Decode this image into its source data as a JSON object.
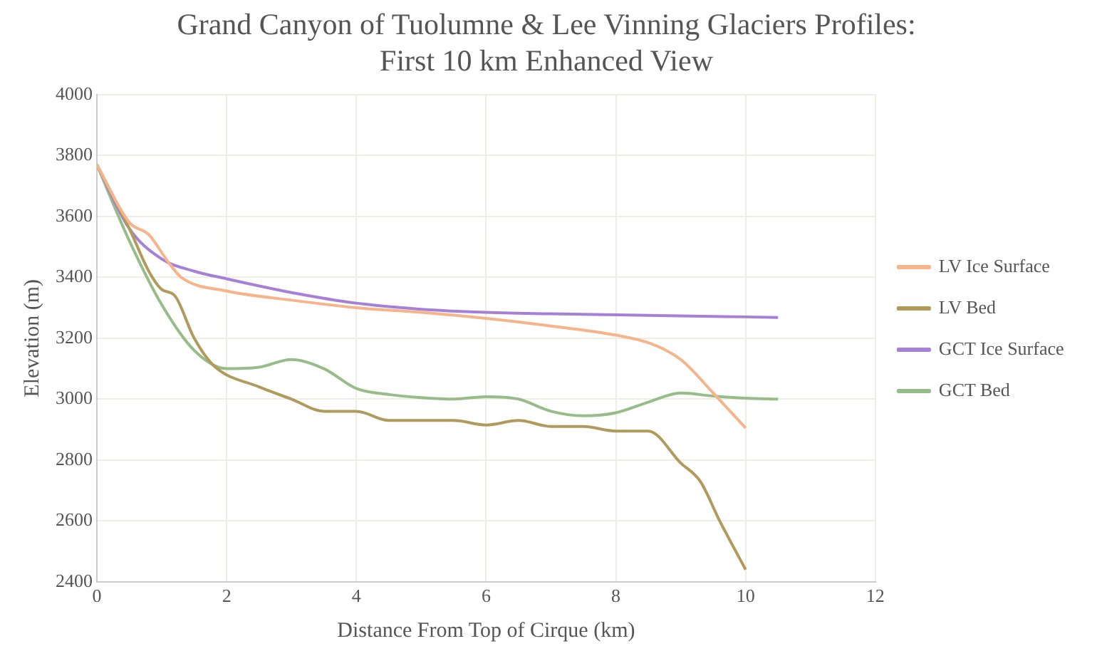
{
  "chart_data": {
    "type": "line",
    "title": "Grand Canyon of Tuolumne & Lee Vinning Glaciers Profiles:",
    "subtitle": "First 10 km Enhanced View",
    "xlabel": "Distance From Top of Cirque (km)",
    "ylabel": "Elevation (m)",
    "xlim": [
      0,
      12
    ],
    "xticks": [
      0,
      2,
      4,
      6,
      8,
      10,
      12
    ],
    "ylim": [
      2400,
      4000
    ],
    "yticks": [
      2400,
      2600,
      2800,
      3000,
      3200,
      3400,
      3600,
      3800,
      4000
    ],
    "grid": true,
    "legend": "right",
    "marker": "none",
    "line_style": "solid",
    "series": [
      {
        "name": "LV Ice Surface",
        "color": "#f6b48a",
        "x": [
          0,
          0.5,
          0.8,
          1.1,
          1.3,
          2,
          3,
          4,
          5,
          6,
          7,
          8,
          8.5,
          9,
          9.5,
          10
        ],
        "values": [
          3770,
          3580,
          3540,
          3450,
          3400,
          3355,
          3325,
          3300,
          3285,
          3265,
          3240,
          3210,
          3185,
          3130,
          3020,
          2905
        ]
      },
      {
        "name": "LV Bed",
        "color": "#b09a5c",
        "x": [
          0,
          0.5,
          0.8,
          1,
          1.2,
          1.5,
          1.8,
          2.5,
          3,
          3.5,
          4,
          4.5,
          5,
          5.5,
          6,
          6.5,
          7,
          7.5,
          8,
          8.5,
          9,
          9.3,
          9.6,
          10
        ],
        "values": [
          3770,
          3560,
          3420,
          3360,
          3340,
          3200,
          3110,
          3040,
          3000,
          2960,
          2960,
          2930,
          2930,
          2930,
          2915,
          2930,
          2910,
          2910,
          2895,
          2895,
          2790,
          2730,
          2600,
          2440
        ]
      },
      {
        "name": "GCT Ice Surface",
        "color": "#a680d6",
        "x": [
          0,
          0.5,
          1,
          1.5,
          2,
          3,
          4,
          5,
          6,
          7,
          8,
          9,
          10,
          10.5
        ],
        "values": [
          3770,
          3560,
          3460,
          3420,
          3395,
          3350,
          3315,
          3295,
          3285,
          3280,
          3277,
          3273,
          3270,
          3268
        ]
      },
      {
        "name": "GCT Bed",
        "color": "#96bd88",
        "x": [
          0,
          0.5,
          1,
          1.5,
          2,
          2.5,
          3,
          3.5,
          4,
          4.5,
          5,
          5.5,
          6,
          6.5,
          7,
          7.5,
          8,
          8.5,
          9,
          9.5,
          10,
          10.5
        ],
        "values": [
          3770,
          3520,
          3310,
          3160,
          3100,
          3105,
          3130,
          3100,
          3035,
          3015,
          3005,
          3000,
          3008,
          3000,
          2960,
          2945,
          2955,
          2990,
          3020,
          3010,
          3003,
          3000
        ]
      }
    ]
  }
}
